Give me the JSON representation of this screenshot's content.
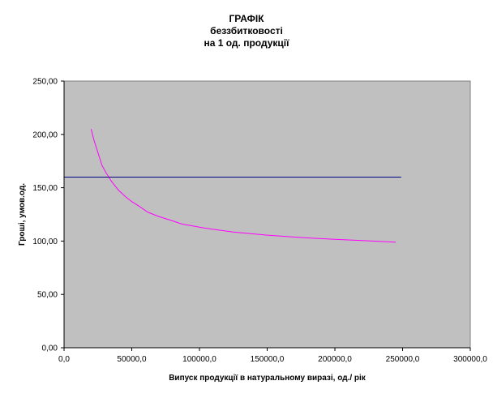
{
  "chart_data": {
    "type": "line",
    "title": [
      "ГРАФІК",
      "беззбитковості",
      "на 1 од. продукції"
    ],
    "xlabel": "Випуск продукції в натуральному виразі, од./ рік",
    "ylabel": "Гроші, умов.од.",
    "xlim": [
      0,
      300000
    ],
    "ylim": [
      0,
      250
    ],
    "x_ticks": [
      "0,0",
      "50000,0",
      "100000,0",
      "150000,0",
      "200000,0",
      "250000,0",
      "300000,0"
    ],
    "y_ticks": [
      "0,00",
      "50,00",
      "100,00",
      "150,00",
      "200,00",
      "250,00"
    ],
    "grid": false,
    "plot_background": "#c0c0c0",
    "series": [
      {
        "color": "#ff00ff",
        "x": [
          20000,
          22000,
          25000,
          28000,
          31000,
          35000,
          40000,
          45000,
          50000,
          55000,
          62000,
          70000,
          80000,
          87000,
          100000,
          110000,
          125000,
          150000,
          175000,
          200000,
          225000,
          245000
        ],
        "y": [
          205,
          195,
          183,
          171,
          164,
          156,
          148,
          142,
          137,
          133,
          127,
          123,
          119,
          116,
          113,
          111,
          108.5,
          105.5,
          103.3,
          101.6,
          100.2,
          99
        ]
      },
      {
        "color": "#000080",
        "x": [
          0,
          249000
        ],
        "y": [
          160,
          160
        ]
      }
    ]
  }
}
